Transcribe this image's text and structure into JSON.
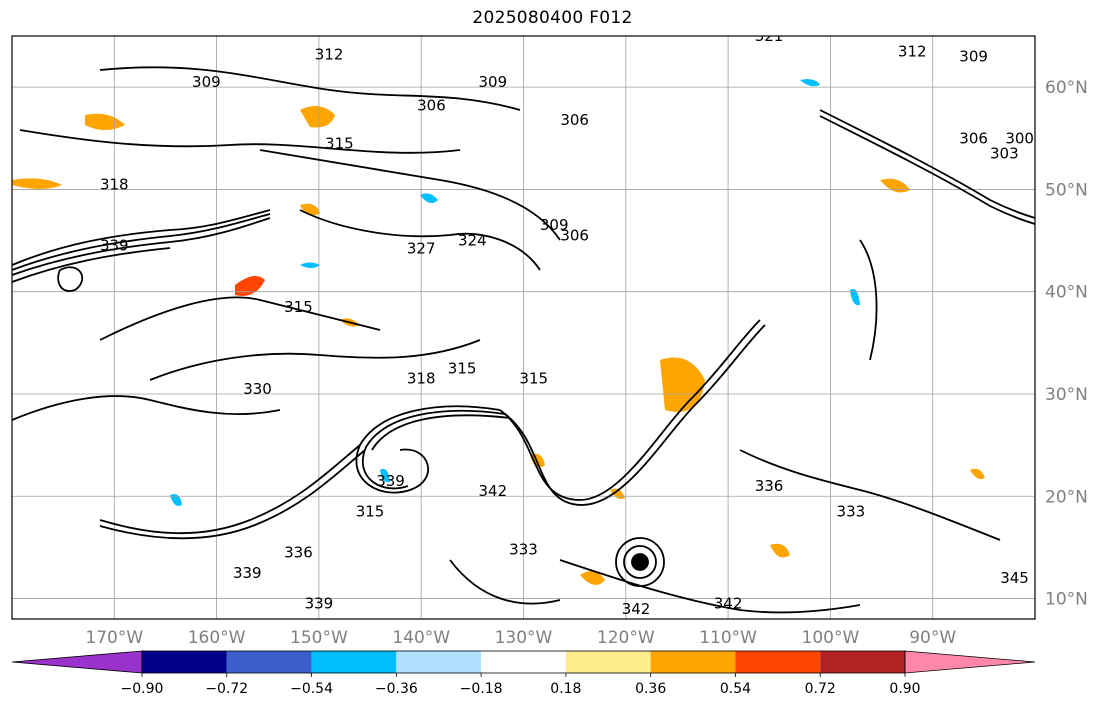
{
  "title": "2025080400 F012",
  "map": {
    "projection": "PlateCarree",
    "lon_range": [
      -180,
      -80
    ],
    "lat_range": [
      8,
      65
    ],
    "lon_ticks": [
      {
        "lon": -170,
        "label": "170°W"
      },
      {
        "lon": -160,
        "label": "160°W"
      },
      {
        "lon": -150,
        "label": "150°W"
      },
      {
        "lon": -140,
        "label": "140°W"
      },
      {
        "lon": -130,
        "label": "130°W"
      },
      {
        "lon": -120,
        "label": "120°W"
      },
      {
        "lon": -110,
        "label": "110°W"
      },
      {
        "lon": -100,
        "label": "100°W"
      },
      {
        "lon": -90,
        "label": "90°W"
      }
    ],
    "lat_ticks": [
      {
        "lat": 60,
        "label": "60°N"
      },
      {
        "lat": 50,
        "label": "50°N"
      },
      {
        "lat": 40,
        "label": "40°N"
      },
      {
        "lat": 30,
        "label": "30°N"
      },
      {
        "lat": 20,
        "label": "20°N"
      },
      {
        "lat": 10,
        "label": "10°N"
      }
    ],
    "gridlines": true,
    "gridline_color": "#a0a0a0",
    "contour_color": "#000000",
    "contour_labels": [
      {
        "lon": -161,
        "lat": 60.5,
        "text": "309"
      },
      {
        "lon": -149,
        "lat": 63.2,
        "text": "312"
      },
      {
        "lon": -133,
        "lat": 60.5,
        "text": "309"
      },
      {
        "lon": -139,
        "lat": 58.2,
        "text": "306"
      },
      {
        "lon": -125,
        "lat": 56.8,
        "text": "306"
      },
      {
        "lon": -148,
        "lat": 54.5,
        "text": "315"
      },
      {
        "lon": -170,
        "lat": 50.5,
        "text": "318"
      },
      {
        "lon": -127,
        "lat": 46.5,
        "text": "309"
      },
      {
        "lon": -125,
        "lat": 45.5,
        "text": "306"
      },
      {
        "lon": -140,
        "lat": 44.2,
        "text": "327"
      },
      {
        "lon": -135,
        "lat": 45,
        "text": "324"
      },
      {
        "lon": -170,
        "lat": 44.5,
        "text": "339"
      },
      {
        "lon": -152,
        "lat": 38.5,
        "text": "315"
      },
      {
        "lon": -140,
        "lat": 31.5,
        "text": "318"
      },
      {
        "lon": -136,
        "lat": 32.5,
        "text": "315"
      },
      {
        "lon": -129,
        "lat": 31.5,
        "text": "315"
      },
      {
        "lon": -156,
        "lat": 30.5,
        "text": "330"
      },
      {
        "lon": -143,
        "lat": 21.5,
        "text": "339"
      },
      {
        "lon": -133,
        "lat": 20.5,
        "text": "342"
      },
      {
        "lon": -145,
        "lat": 18.5,
        "text": "315"
      },
      {
        "lon": -152,
        "lat": 14.5,
        "text": "336"
      },
      {
        "lon": -157,
        "lat": 12.5,
        "text": "339"
      },
      {
        "lon": -150,
        "lat": 9.5,
        "text": "339"
      },
      {
        "lon": -110,
        "lat": 9.5,
        "text": "342"
      },
      {
        "lon": -119,
        "lat": 9,
        "text": "342"
      },
      {
        "lon": -130,
        "lat": 14.8,
        "text": "333"
      },
      {
        "lon": -98,
        "lat": 18.5,
        "text": "333"
      },
      {
        "lon": -106,
        "lat": 21,
        "text": "336"
      },
      {
        "lon": -106,
        "lat": 65,
        "text": "321"
      },
      {
        "lon": -92,
        "lat": 63.5,
        "text": "312"
      },
      {
        "lon": -86,
        "lat": 63,
        "text": "309"
      },
      {
        "lon": -86,
        "lat": 55,
        "text": "306"
      },
      {
        "lon": -83,
        "lat": 53.5,
        "text": "303"
      },
      {
        "lon": -81.5,
        "lat": 55,
        "text": "300"
      },
      {
        "lon": -82,
        "lat": 12,
        "text": "345"
      }
    ]
  },
  "colorbar": {
    "label_values": [
      "−0.90",
      "−0.72",
      "−0.54",
      "−0.36",
      "−0.18",
      "0.18",
      "0.36",
      "0.54",
      "0.72",
      "0.90"
    ],
    "colors": [
      "#9a32cd",
      "#00008b",
      "#3a5fcd",
      "#00bfff",
      "#b0e2ff",
      "#ffffff",
      "#ffec8b",
      "#ffa500",
      "#ff4500",
      "#b22222",
      "#ff88aa"
    ]
  }
}
